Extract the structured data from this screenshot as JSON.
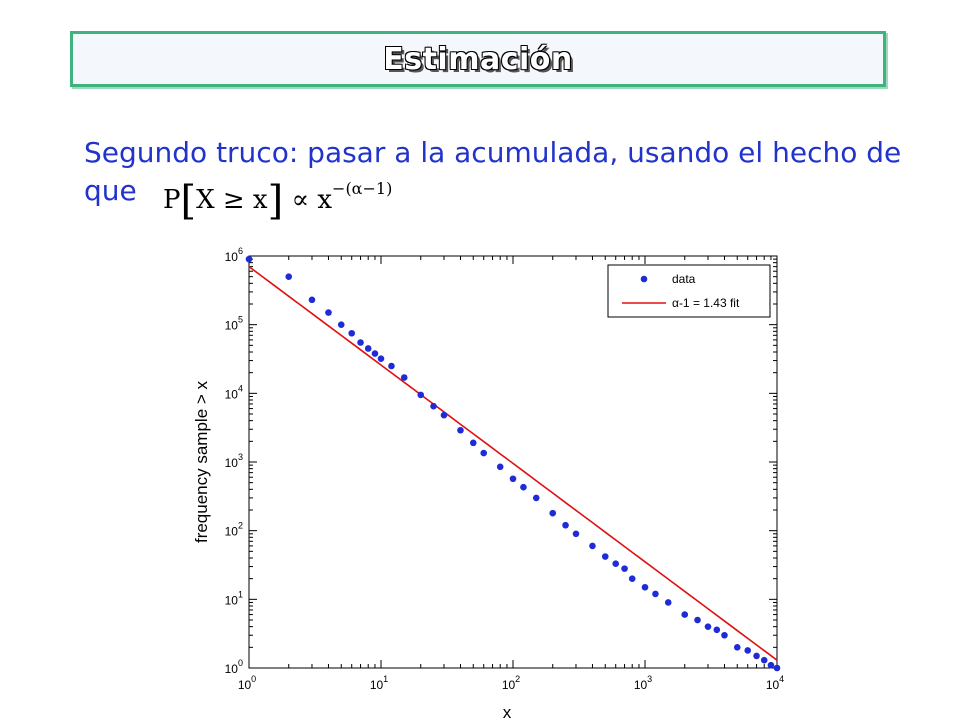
{
  "slide": {
    "title": "Estimación",
    "body_line1": "Segundo truco: pasar a la acumulada, usando el hecho de",
    "body_line2": "que",
    "formula": {
      "lhs_p": "P",
      "lhs_open": "[",
      "lhs_inner": "X ≥ x",
      "lhs_close": "]",
      "prop": "∝",
      "base": "x",
      "exponent": "−(α−1)"
    }
  },
  "chart_data": {
    "type": "scatter",
    "title": "",
    "xlabel": "x",
    "ylabel": "frequency sample > x",
    "xscale": "log",
    "yscale": "log",
    "xlim": [
      1,
      10000
    ],
    "ylim": [
      1,
      1000000
    ],
    "x_tick_labels": [
      {
        "base": "10",
        "exp": "0"
      },
      {
        "base": "10",
        "exp": "1"
      },
      {
        "base": "10",
        "exp": "2"
      },
      {
        "base": "10",
        "exp": "3"
      },
      {
        "base": "10",
        "exp": "4"
      }
    ],
    "y_tick_labels": [
      {
        "base": "10",
        "exp": "0"
      },
      {
        "base": "10",
        "exp": "1"
      },
      {
        "base": "10",
        "exp": "2"
      },
      {
        "base": "10",
        "exp": "3"
      },
      {
        "base": "10",
        "exp": "4"
      },
      {
        "base": "10",
        "exp": "5"
      },
      {
        "base": "10",
        "exp": "6"
      }
    ],
    "legend": {
      "placement": "top-right",
      "entries": [
        {
          "label": "data",
          "kind": "marker",
          "color": "#1f2bd6"
        },
        {
          "label": "α-1 =  1.43 fit",
          "kind": "line",
          "color": "#e01010"
        }
      ]
    },
    "series": [
      {
        "name": "data",
        "kind": "scatter",
        "color": "#1f2bd6",
        "x": [
          1,
          2,
          3,
          4,
          5,
          6,
          7,
          8,
          9,
          10,
          12,
          15,
          20,
          25,
          30,
          40,
          50,
          60,
          80,
          100,
          120,
          150,
          200,
          250,
          300,
          400,
          500,
          600,
          700,
          800,
          1000,
          1200,
          1500,
          2000,
          2500,
          3000,
          3500,
          4000,
          5000,
          6000,
          7000,
          8000,
          9000,
          10000
        ],
        "y": [
          900000,
          500000,
          230000,
          150000,
          100000,
          75000,
          55000,
          45000,
          38000,
          32000,
          25000,
          17000,
          9500,
          6500,
          4800,
          2900,
          1900,
          1350,
          850,
          570,
          430,
          300,
          180,
          120,
          90,
          60,
          42,
          33,
          28,
          20,
          15,
          12,
          9,
          6,
          5,
          4,
          3.6,
          3,
          2,
          1.8,
          1.5,
          1.3,
          1.1,
          1
        ]
      },
      {
        "name": "α-1 =  1.43 fit",
        "kind": "line",
        "color": "#e01010",
        "x": [
          1,
          10000
        ],
        "y": [
          700000,
          1.3
        ]
      }
    ]
  }
}
